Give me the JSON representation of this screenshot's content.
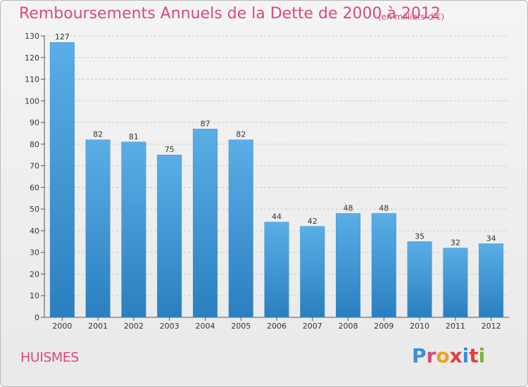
{
  "header": {
    "title": "Remboursements Annuels de la Dette de 2000 à 2012",
    "unit_note": "(en milliers d'€)"
  },
  "footer": {
    "city": "HUISMES",
    "logo_text": "Proxiti"
  },
  "colors": {
    "accent": "#d84a7c",
    "bar_top": "#5aaee6",
    "bar_bottom": "#2a7fc0",
    "grid": "#c8c8c8",
    "logo_letters": [
      "#3a8fd8",
      "#d84a7c",
      "#f0a020",
      "#e04040",
      "#3a8fd8",
      "#e04040",
      "#7ab83a"
    ]
  },
  "chart_data": {
    "type": "bar",
    "title": "Remboursements Annuels de la Dette de 2000 à 2012",
    "subtitle": "(en milliers d'€)",
    "xlabel": "",
    "ylabel": "",
    "categories": [
      "2000",
      "2001",
      "2002",
      "2003",
      "2004",
      "2005",
      "2006",
      "2007",
      "2008",
      "2009",
      "2010",
      "2011",
      "2012"
    ],
    "values": [
      127,
      82,
      81,
      75,
      87,
      82,
      44,
      42,
      48,
      48,
      35,
      32,
      34
    ],
    "ylim": [
      0,
      130
    ],
    "yticks": [
      0,
      10,
      20,
      30,
      40,
      50,
      60,
      70,
      80,
      90,
      100,
      110,
      120,
      130
    ],
    "grid": "horizontal-dashed",
    "data_labels": true
  }
}
